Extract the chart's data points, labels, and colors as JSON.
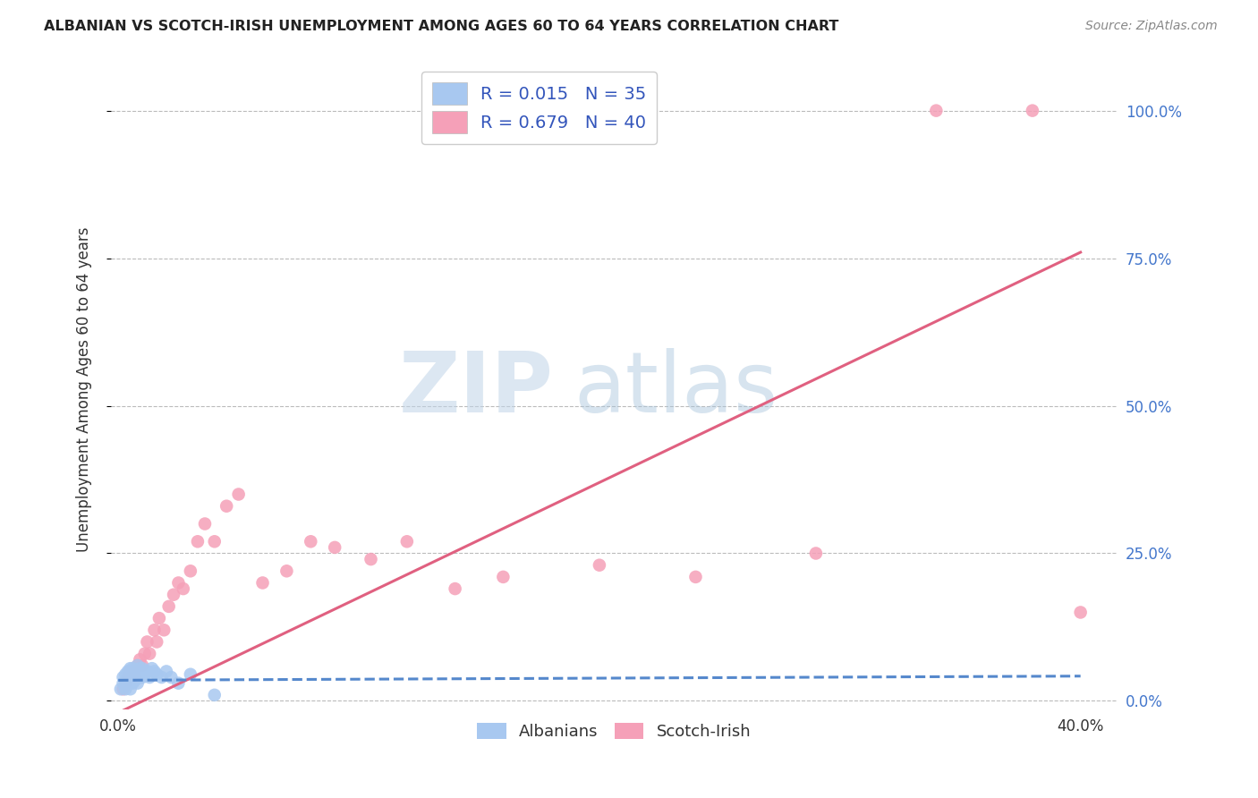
{
  "title": "ALBANIAN VS SCOTCH-IRISH UNEMPLOYMENT AMONG AGES 60 TO 64 YEARS CORRELATION CHART",
  "source": "Source: ZipAtlas.com",
  "ylabel": "Unemployment Among Ages 60 to 64 years",
  "xlim": [
    -0.003,
    0.415
  ],
  "ylim": [
    -0.015,
    1.07
  ],
  "xtick_positions": [
    0.0,
    0.4
  ],
  "xticklabels": [
    "0.0%",
    "40.0%"
  ],
  "ytick_positions": [
    0.0,
    0.25,
    0.5,
    0.75,
    1.0
  ],
  "yticklabels_right": [
    "0.0%",
    "25.0%",
    "50.0%",
    "75.0%",
    "100.0%"
  ],
  "albanian_R": 0.015,
  "albanian_N": 35,
  "scotch_R": 0.679,
  "scotch_N": 40,
  "albanian_color": "#A8C8F0",
  "scotch_color": "#F5A0B8",
  "albanian_line_color": "#5588CC",
  "scotch_line_color": "#E06080",
  "legend_label_1": "Albanians",
  "legend_label_2": "Scotch-Irish",
  "watermark_zip_color": "#C5D8EC",
  "watermark_atlas_color": "#A8C8E0",
  "scotch_x": [
    0.002,
    0.003,
    0.004,
    0.005,
    0.006,
    0.007,
    0.008,
    0.009,
    0.01,
    0.011,
    0.012,
    0.013,
    0.015,
    0.016,
    0.017,
    0.019,
    0.021,
    0.023,
    0.025,
    0.027,
    0.03,
    0.033,
    0.036,
    0.04,
    0.045,
    0.05,
    0.06,
    0.07,
    0.08,
    0.09,
    0.105,
    0.12,
    0.14,
    0.16,
    0.2,
    0.24,
    0.29,
    0.34,
    0.38,
    0.4
  ],
  "scotch_y": [
    0.02,
    0.03,
    0.04,
    0.05,
    0.05,
    0.04,
    0.06,
    0.07,
    0.06,
    0.08,
    0.1,
    0.08,
    0.12,
    0.1,
    0.14,
    0.12,
    0.16,
    0.18,
    0.2,
    0.19,
    0.22,
    0.27,
    0.3,
    0.27,
    0.33,
    0.35,
    0.2,
    0.22,
    0.27,
    0.26,
    0.24,
    0.27,
    0.19,
    0.21,
    0.23,
    0.21,
    0.25,
    1.0,
    1.0,
    0.15
  ],
  "albanian_x": [
    0.001,
    0.002,
    0.002,
    0.003,
    0.003,
    0.004,
    0.004,
    0.004,
    0.005,
    0.005,
    0.005,
    0.006,
    0.006,
    0.006,
    0.007,
    0.007,
    0.008,
    0.008,
    0.008,
    0.009,
    0.009,
    0.01,
    0.01,
    0.011,
    0.012,
    0.013,
    0.014,
    0.015,
    0.016,
    0.018,
    0.02,
    0.022,
    0.025,
    0.03,
    0.04
  ],
  "albanian_y": [
    0.02,
    0.03,
    0.04,
    0.02,
    0.045,
    0.03,
    0.04,
    0.05,
    0.02,
    0.035,
    0.055,
    0.03,
    0.04,
    0.055,
    0.035,
    0.05,
    0.03,
    0.045,
    0.06,
    0.04,
    0.055,
    0.04,
    0.055,
    0.045,
    0.05,
    0.04,
    0.055,
    0.05,
    0.045,
    0.04,
    0.05,
    0.04,
    0.03,
    0.045,
    0.01
  ],
  "scotch_trend_x": [
    0.0,
    0.4
  ],
  "scotch_trend_y": [
    -0.02,
    0.76
  ],
  "albanian_trend_x": [
    0.0,
    0.4
  ],
  "albanian_trend_y": [
    0.035,
    0.042
  ]
}
